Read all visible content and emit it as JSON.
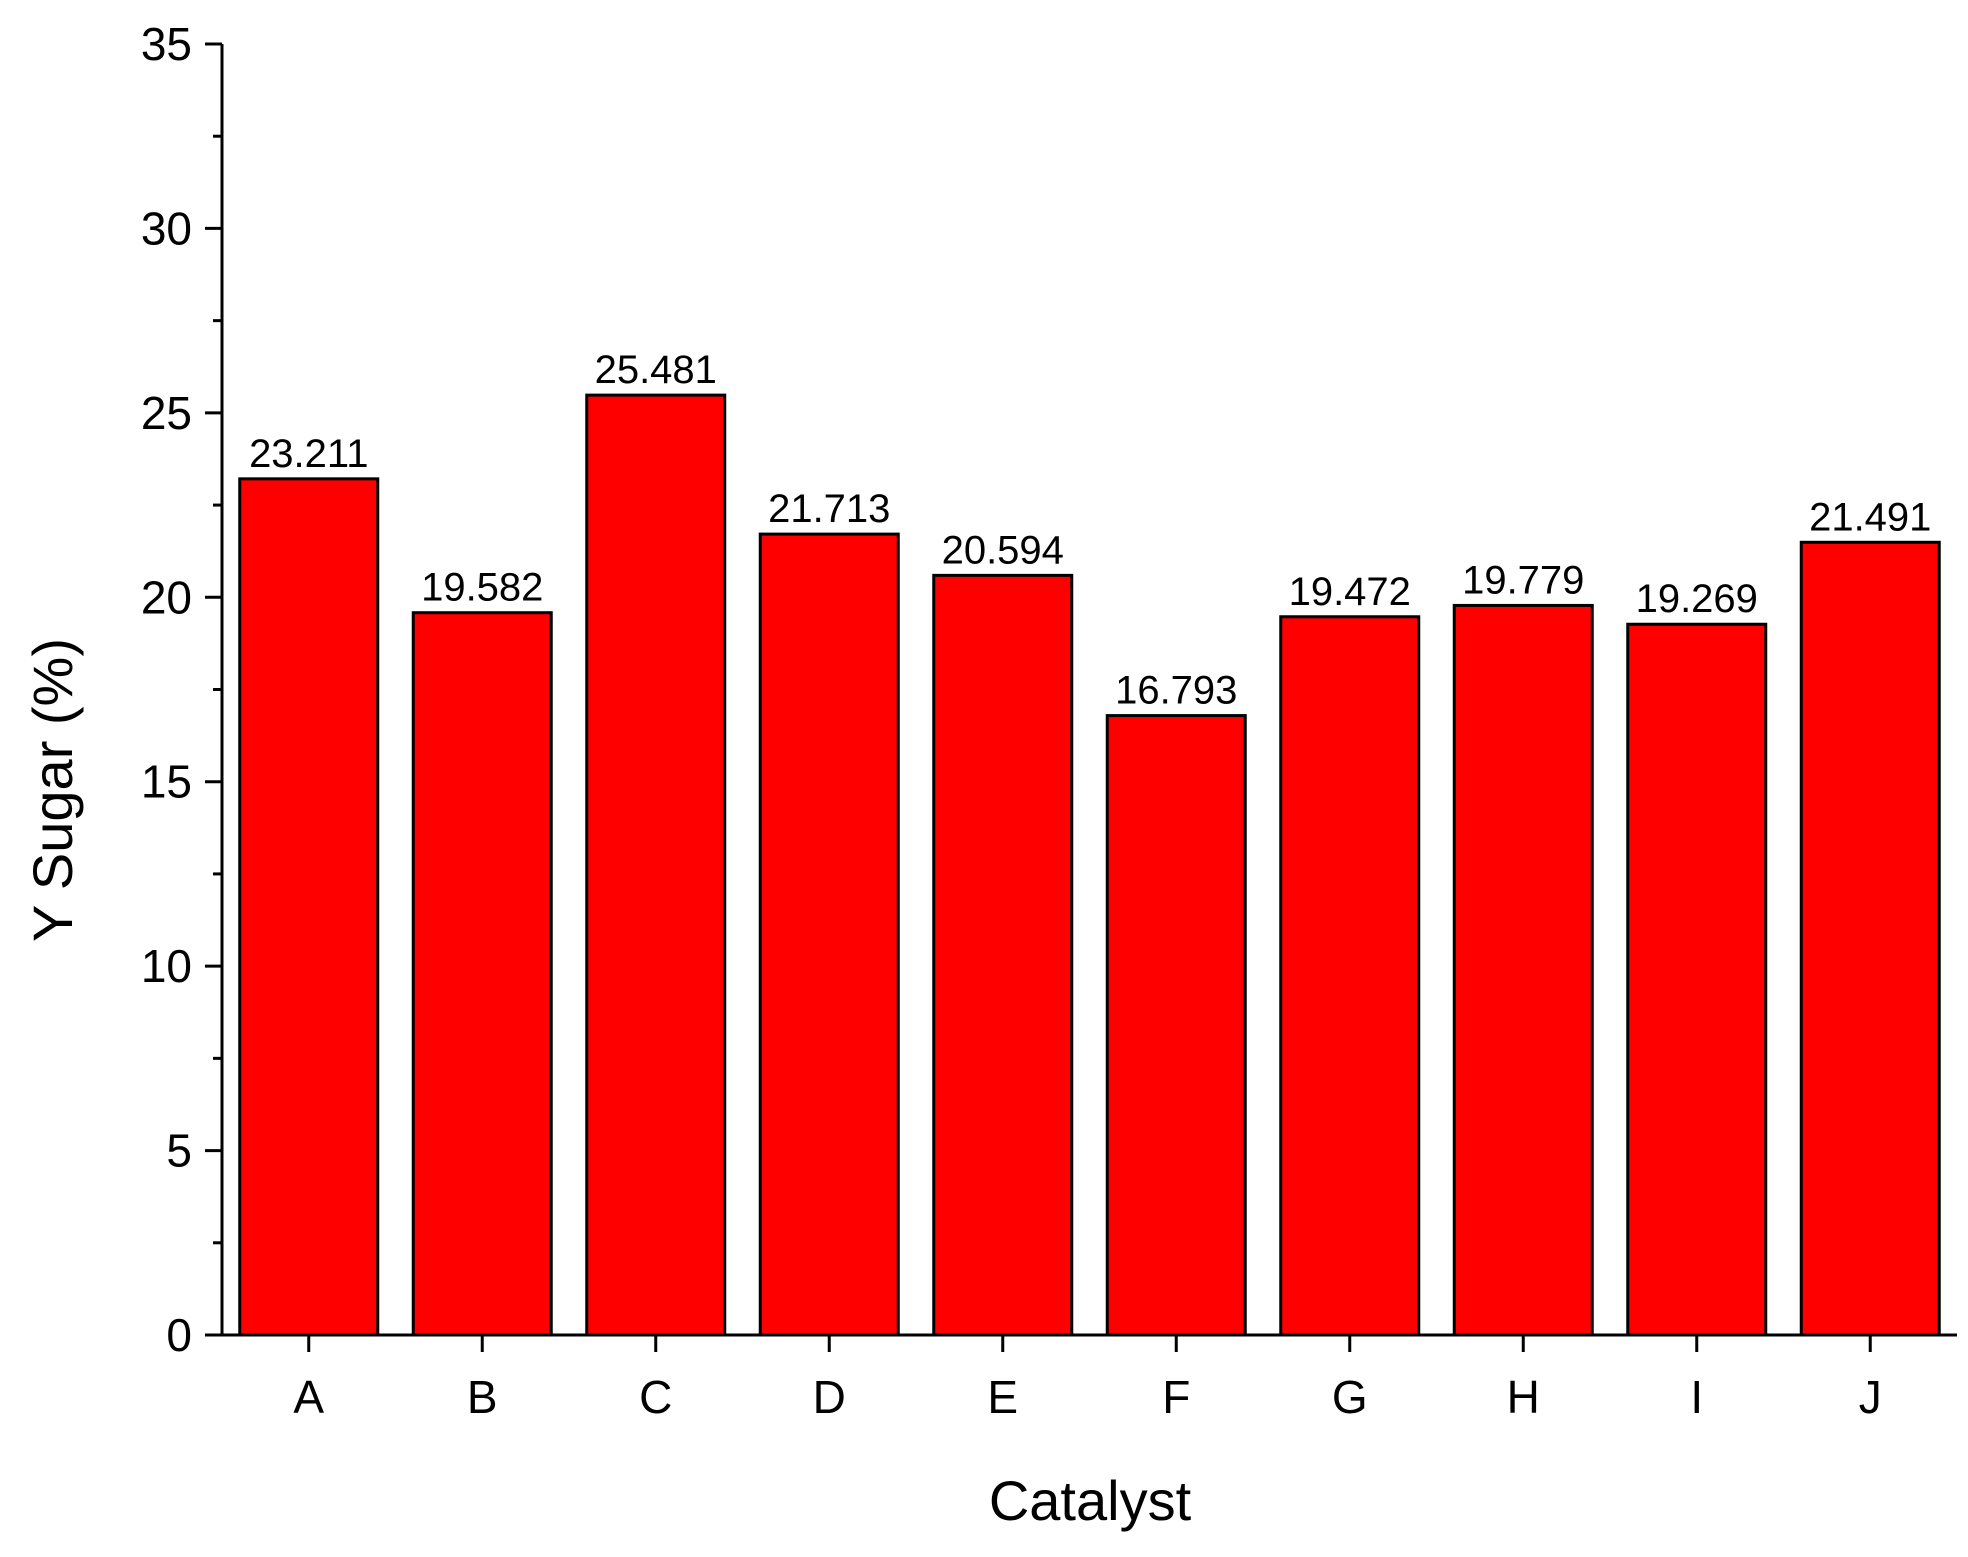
{
  "chart_data": {
    "type": "bar",
    "xlabel": "Catalyst",
    "ylabel": "Y Sugar (%)",
    "categories": [
      "A",
      "B",
      "C",
      "D",
      "E",
      "F",
      "G",
      "H",
      "I",
      "J"
    ],
    "values": [
      23.211,
      19.582,
      25.481,
      21.713,
      20.594,
      16.793,
      19.472,
      19.779,
      19.269,
      21.491
    ],
    "data_labels": [
      "23.211",
      "19.582",
      "25.481",
      "21.713",
      "20.594",
      "16.793",
      "19.472",
      "19.779",
      "19.269",
      "21.491"
    ],
    "ylim": [
      0,
      35
    ],
    "y_ticks": [
      "0",
      "5",
      "10",
      "15",
      "20",
      "25",
      "30",
      "35"
    ],
    "bar_color": "#ff0000",
    "grid": false,
    "legend": "none"
  }
}
